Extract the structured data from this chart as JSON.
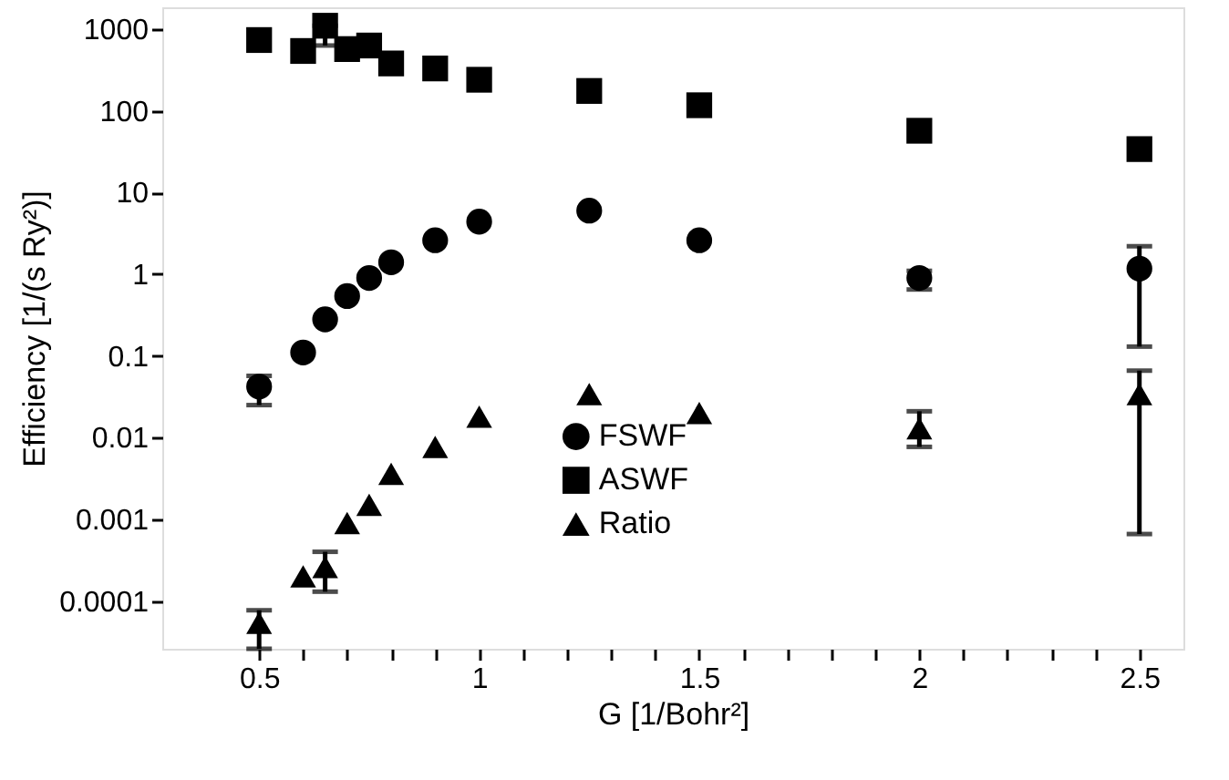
{
  "chart_data": {
    "type": "scatter",
    "xlabel": "G [1/Bohr²]",
    "ylabel": "Efficiency [1/(s Ry²)]",
    "log": "y",
    "legend": "bottom",
    "grid": false,
    "xlim": [
      0.28,
      2.6
    ],
    "ylim": [
      2.6e-05,
      1850
    ],
    "xticks": [
      0.5,
      {
        "value": 0.6,
        "label": null
      },
      {
        "value": 0.7,
        "label": null
      },
      {
        "value": 0.8,
        "label": null
      },
      {
        "value": 0.9,
        "label": null
      },
      1,
      {
        "value": 1.1,
        "label": null
      },
      {
        "value": 1.2,
        "label": null
      },
      {
        "value": 1.3,
        "label": null
      },
      {
        "value": 1.4,
        "label": null
      },
      1.5,
      {
        "value": 1.6,
        "label": null
      },
      {
        "value": 1.7,
        "label": null
      },
      {
        "value": 1.8,
        "label": null
      },
      {
        "value": 1.9,
        "label": null
      },
      2,
      {
        "value": 2.1,
        "label": null
      },
      {
        "value": 2.2,
        "label": null
      },
      {
        "value": 2.3,
        "label": null
      },
      {
        "value": 2.4,
        "label": null
      },
      2.5
    ],
    "yticks": [
      0.0001,
      0.001,
      0.01,
      0.1,
      1,
      10,
      100,
      1000
    ],
    "x": [
      0.5,
      0.6,
      0.65,
      0.7,
      0.75,
      0.8,
      0.9,
      1.0,
      1.25,
      1.5,
      2.0,
      2.5
    ],
    "series": [
      {
        "name": "FSWF",
        "color": "#000000",
        "marker": "circle",
        "values": [
          0.042,
          0.11,
          0.28,
          0.54,
          0.9,
          1.4,
          2.6,
          4.4,
          6.0,
          2.6,
          0.9,
          1.17
        ],
        "errors": [
          [
            0.025,
            0.057
          ],
          null,
          null,
          null,
          null,
          null,
          null,
          null,
          null,
          null,
          [
            0.65,
            1.1
          ],
          [
            0.13,
            2.2
          ]
        ]
      },
      {
        "name": "ASWF",
        "color": "#000000",
        "marker": "square",
        "values": [
          735,
          540,
          1100,
          570,
          630,
          380,
          330,
          240,
          175,
          117,
          57,
          34
        ],
        "errors": [
          null,
          null,
          [
            630,
            1100
          ],
          null,
          null,
          null,
          null,
          null,
          null,
          null,
          null,
          null
        ]
      },
      {
        "name": "Ratio",
        "color": "#000000",
        "marker": "triangle",
        "values": [
          5.4e-05,
          0.0002,
          0.00026,
          0.0009,
          0.0015,
          0.0036,
          0.0077,
          0.018,
          0.034,
          0.02,
          0.013,
          0.034
        ],
        "errors": [
          [
            2.6e-05,
            7.7e-05
          ],
          null,
          [
            0.00013,
            0.0004
          ],
          null,
          null,
          null,
          null,
          null,
          null,
          null,
          [
            0.0077,
            0.021
          ],
          [
            0.00066,
            0.066
          ]
        ]
      }
    ]
  }
}
